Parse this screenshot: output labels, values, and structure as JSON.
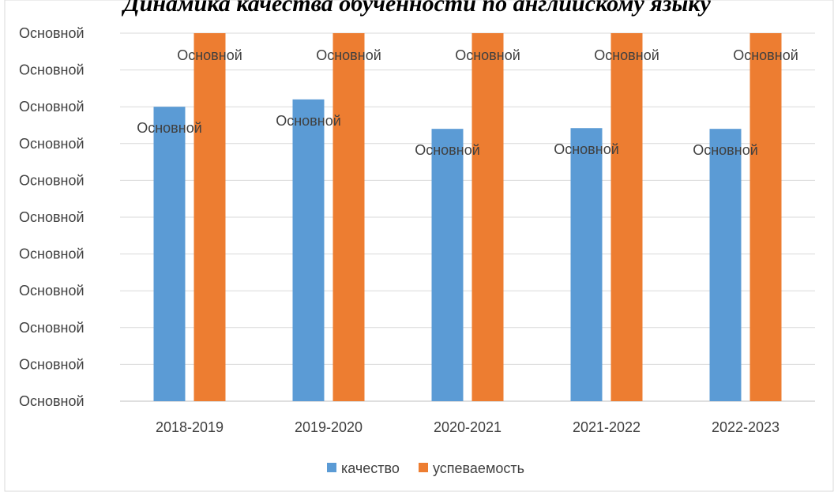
{
  "chart_data": {
    "type": "bar",
    "title": "Динамика качества обученности по английскому языку",
    "categories": [
      "2018-2019",
      "2019-2020",
      "2020-2021",
      "2021-2022",
      "2022-2023"
    ],
    "series": [
      {
        "name": "качество",
        "values": [
          80.0,
          82.0,
          74.0,
          74.2,
          74.0
        ],
        "data_labels": [
          "Основной",
          "Основной",
          "Основной",
          "Основной",
          "Основной"
        ],
        "color": "#5B9BD5"
      },
      {
        "name": "успеваемость",
        "values": [
          100,
          100,
          100,
          100,
          100
        ],
        "data_labels": [
          "Основной",
          "Основной",
          "Основной",
          "Основной",
          "Основной"
        ],
        "color": "#ED7D31"
      }
    ],
    "y_tick_labels": [
      "Основной",
      "Основной",
      "Основной",
      "Основной",
      "Основной",
      "Основной",
      "Основной",
      "Основной",
      "Основной",
      "Основной",
      "Основной"
    ],
    "ylim": [
      0,
      100
    ],
    "grid": true,
    "legend_position": "bottom",
    "colors": {
      "grid": "#D9D9D9",
      "axis": "#BFBFBF",
      "text": "#404040",
      "border": "#D9D9D9"
    }
  }
}
